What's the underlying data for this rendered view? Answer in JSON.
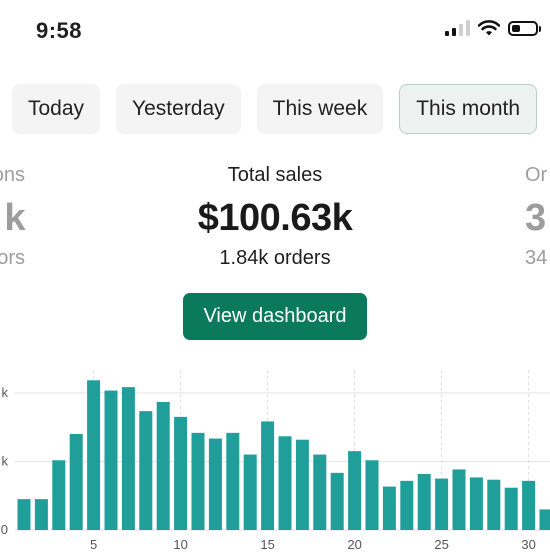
{
  "status_bar": {
    "time": "9:58",
    "icons": [
      "signal-icon",
      "wifi-icon",
      "battery-icon"
    ],
    "battery_level": 0.35
  },
  "filters": {
    "tabs": [
      {
        "label": "Today",
        "active": false
      },
      {
        "label": "Yesterday",
        "active": false
      },
      {
        "label": "This week",
        "active": false
      },
      {
        "label": "This month",
        "active": true
      }
    ]
  },
  "metrics": {
    "left_partial": {
      "label": "ons",
      "value": "k",
      "sub": "ors"
    },
    "center": {
      "label": "Total sales",
      "value": "$100.63k",
      "sub": "1.84k orders"
    },
    "right_partial": {
      "label": "Or",
      "value": "3",
      "sub": "34"
    }
  },
  "actions": {
    "view_dashboard_label": "View dashboard"
  },
  "colors": {
    "accent": "#0b7a5c",
    "bar": "#1f9e9a",
    "active_tab_bg": "#eef3f1",
    "tab_bg": "#f4f4f4"
  },
  "chart_data": {
    "type": "bar",
    "x": [
      1,
      2,
      3,
      4,
      5,
      6,
      7,
      8,
      9,
      10,
      11,
      12,
      13,
      14,
      15,
      16,
      17,
      18,
      19,
      20,
      21,
      22,
      23,
      24,
      25,
      26,
      27,
      28,
      29,
      30,
      31
    ],
    "values": [
      1.35,
      1.35,
      3.05,
      4.2,
      6.55,
      6.1,
      6.25,
      5.2,
      5.6,
      4.95,
      4.25,
      4.0,
      4.25,
      3.3,
      4.75,
      4.1,
      3.95,
      3.3,
      2.5,
      3.45,
      3.05,
      1.9,
      2.15,
      2.45,
      2.25,
      2.65,
      2.3,
      2.2,
      1.85,
      2.15,
      0.9
    ],
    "x_tick_labels": [
      "5",
      "10",
      "15",
      "20",
      "25",
      "30"
    ],
    "x_ticks": [
      5,
      10,
      15,
      20,
      25,
      30
    ],
    "y_tick_labels": [
      "0",
      "k",
      "k"
    ],
    "y_ticks": [
      0,
      3,
      6
    ],
    "ylim": [
      0,
      7
    ],
    "grid": true,
    "title": "",
    "xlabel": "",
    "ylabel": ""
  }
}
